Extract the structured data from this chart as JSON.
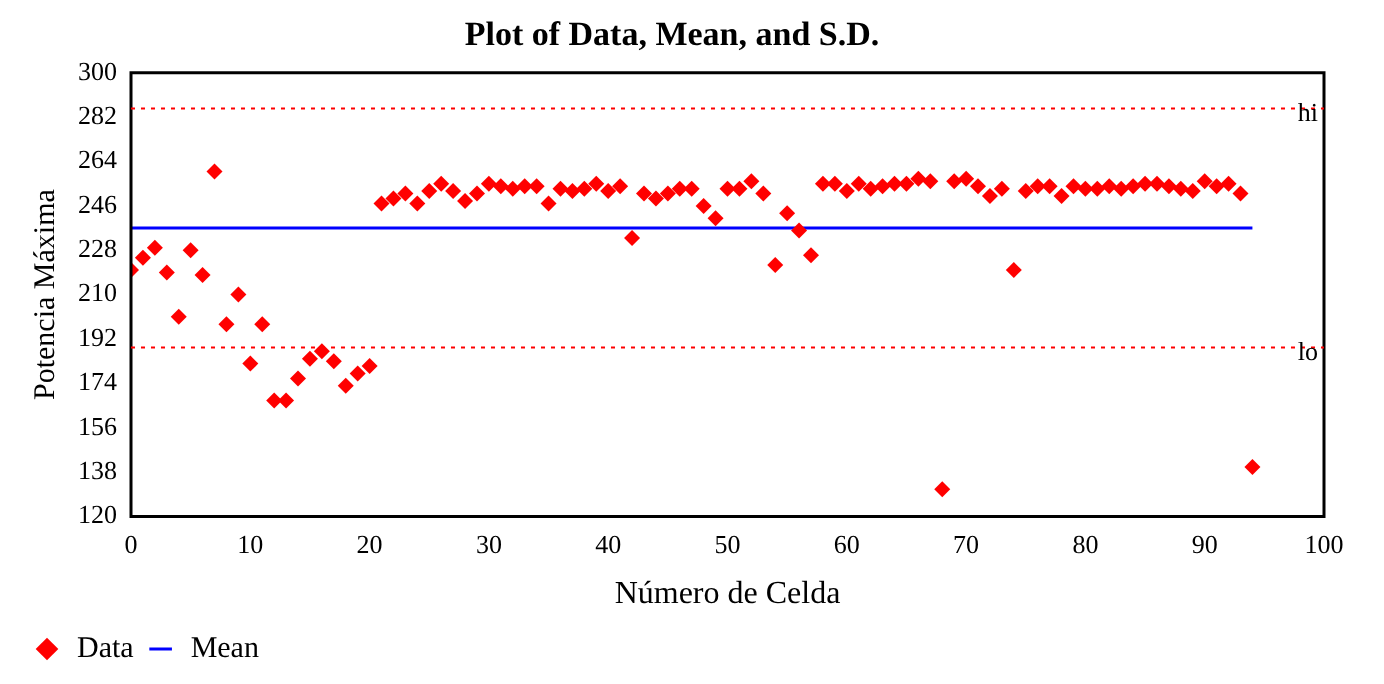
{
  "chart_data": {
    "type": "scatter",
    "title": "Plot of Data, Mean, and S.D.",
    "xlabel": "Número de Celda",
    "ylabel": "Potencia Máxima",
    "xlim": [
      0,
      100
    ],
    "xticks": [
      0,
      10,
      20,
      30,
      40,
      50,
      60,
      70,
      80,
      90,
      100
    ],
    "ylim": [
      120,
      300
    ],
    "yticks": [
      120,
      138,
      156,
      174,
      192,
      210,
      228,
      246,
      264,
      282,
      300
    ],
    "grid": false,
    "legend": "bottom left",
    "series": [
      {
        "name": "Data",
        "marker": "diamond",
        "color": "#ff0000",
        "x": [
          0,
          1,
          2,
          3,
          4,
          5,
          6,
          7,
          8,
          9,
          10,
          11,
          12,
          13,
          14,
          15,
          16,
          17,
          18,
          19,
          20,
          21,
          22,
          23,
          24,
          25,
          26,
          27,
          28,
          29,
          30,
          31,
          32,
          33,
          34,
          35,
          36,
          37,
          38,
          39,
          40,
          41,
          42,
          43,
          44,
          45,
          46,
          47,
          48,
          49,
          50,
          51,
          52,
          53,
          54,
          55,
          56,
          57,
          58,
          59,
          60,
          61,
          62,
          63,
          64,
          65,
          66,
          67,
          68,
          69,
          70,
          71,
          72,
          73,
          74,
          75,
          76,
          77,
          78,
          79,
          80,
          81,
          82,
          83,
          84,
          85,
          86,
          87,
          88,
          89,
          90,
          91,
          92,
          93,
          94
        ],
        "values": [
          220,
          225,
          229,
          219,
          201,
          228,
          218,
          260,
          198,
          210,
          182,
          198,
          167,
          167,
          176,
          184,
          187,
          183,
          173,
          178,
          181,
          247,
          249,
          251,
          247,
          252,
          255,
          252,
          248,
          251,
          255,
          254,
          253,
          254,
          254,
          247,
          253,
          252,
          253,
          255,
          252,
          254,
          233,
          251,
          249,
          251,
          253,
          253,
          246,
          241,
          253,
          253,
          256,
          251,
          222,
          243,
          236,
          226,
          255,
          255,
          252,
          255,
          253,
          254,
          255,
          255,
          257,
          256,
          131,
          256,
          257,
          254,
          250,
          253,
          220,
          252,
          254,
          254,
          250,
          254,
          253,
          253,
          254,
          253,
          254,
          255,
          255,
          254,
          253,
          252,
          256,
          254,
          255,
          251,
          140
        ]
      },
      {
        "name": "Mean",
        "type": "line",
        "marker": "none",
        "color": "#0000ff",
        "x": [
          0,
          94
        ],
        "values": [
          237,
          237
        ]
      }
    ],
    "ref_lines": [
      {
        "axis": "y",
        "value": 285.5,
        "label": "hi",
        "color": "#ff0000",
        "line_style": "dotted"
      },
      {
        "axis": "y",
        "value": 188.5,
        "label": "lo",
        "color": "#ff0000",
        "line_style": "dotted"
      }
    ]
  }
}
